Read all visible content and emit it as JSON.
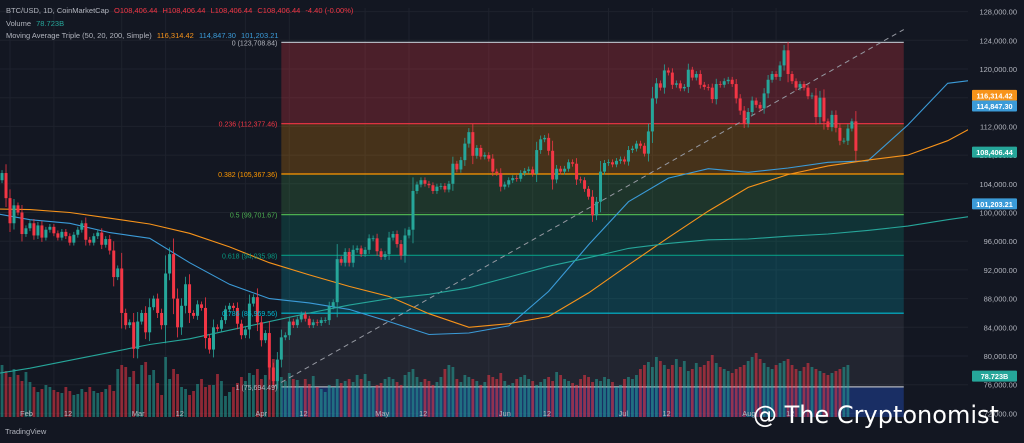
{
  "header": {
    "symbol": "BTC/USD, 1D, CoinMarketCap",
    "ohlc": [
      "O108,406.44",
      "H108,406.44",
      "L108,406.44",
      "C108,406.44",
      "-4.40 (-0.00%)"
    ],
    "volume_label": "Volume",
    "volume_value": "78.723B",
    "ma_label": "Moving Average Triple (50, 20, 200, Simple)",
    "ma_values": [
      "116,314.42",
      "114,847.30",
      "101,203.21"
    ]
  },
  "watermark": "@ The Cryptonomist",
  "footer": {
    "brand": "TradingView"
  },
  "colors": {
    "background": "#131722",
    "up": "#26a69a",
    "down": "#f23645",
    "ma50": "#f7931a",
    "ma20": "#3b9bd8",
    "ma200": "#26a69a",
    "grid": "#1e222d"
  },
  "chart_data": {
    "type": "candlestick",
    "ylim": [
      71500,
      128500
    ],
    "price_ticks": [
      "128,000.00",
      "124,000.00",
      "120,000.00",
      "116,000.00",
      "112,000.00",
      "108,000.00",
      "104,000.00",
      "100,000.00",
      "96,000.00",
      "92,000.00",
      "88,000.00",
      "84,000.00",
      "80,000.00",
      "76,000.00",
      "72,000.00"
    ],
    "x_ticks": [
      {
        "label": "Feb",
        "day": 0
      },
      {
        "label": "12",
        "day": 11
      },
      {
        "label": "Mar",
        "day": 28
      },
      {
        "label": "12",
        "day": 39
      },
      {
        "label": "Apr",
        "day": 59
      },
      {
        "label": "12",
        "day": 70
      },
      {
        "label": "May",
        "day": 89
      },
      {
        "label": "12",
        "day": 100
      },
      {
        "label": "Jun",
        "day": 120
      },
      {
        "label": "12",
        "day": 131
      },
      {
        "label": "Jul",
        "day": 150
      },
      {
        "label": "12",
        "day": 161
      },
      {
        "label": "Aug",
        "day": 181
      },
      {
        "label": "12",
        "day": 192
      }
    ],
    "fibonacci": [
      {
        "label": "0 (123,708.84)",
        "price": 123708.84,
        "color": "#b2b5be",
        "fill": "rgba(242,54,69,0.25)"
      },
      {
        "label": "0.236 (112,377.46)",
        "price": 112377.46,
        "color": "#f23645",
        "fill": "rgba(255,152,0,0.22)"
      },
      {
        "label": "0.382 (105,367.36)",
        "price": 105367.36,
        "color": "#ff9800",
        "fill": "rgba(76,175,80,0.20)"
      },
      {
        "label": "0.5 (99,701.67)",
        "price": 99701.67,
        "color": "#4caf50",
        "fill": "rgba(8,153,129,0.22)"
      },
      {
        "label": "0.618 (94,035.98)",
        "price": 94035.98,
        "color": "#089981",
        "fill": "rgba(0,188,212,0.20)"
      },
      {
        "label": "0.786 (85,969.56)",
        "price": 85969.56,
        "color": "#00bcd4",
        "fill": "rgba(120,123,134,0.15)"
      },
      {
        "label": "1 (75,694.49)",
        "price": 75694.49,
        "color": "#b2b5be",
        "fill": "rgba(41,98,255,0.30)"
      }
    ],
    "fib_start_day": 68,
    "fib_end_day": 224,
    "trendline": [
      {
        "day": 66,
        "price": 75700
      },
      {
        "day": 224,
        "price": 125500
      }
    ],
    "price_badges": [
      {
        "text": "116,314.42",
        "price": 116314.42,
        "color": "#f7931a"
      },
      {
        "text": "114,847.30",
        "price": 114847.3,
        "color": "#3b9bd8"
      },
      {
        "text": "108,406.44",
        "price": 108406.44,
        "color": "#26a69a"
      },
      {
        "text": "101,203.21",
        "price": 101203.21,
        "color": "#3b9bd8"
      },
      {
        "text": "78.723B",
        "price": 77200,
        "color": "#26a69a"
      }
    ],
    "series": [
      {
        "name": "Price",
        "day_start": -5,
        "close": [
          102000,
          103500,
          104500,
          105500,
          102000,
          98500,
          101000,
          100000,
          97000,
          97800,
          98500,
          96800,
          98200,
          96500,
          97600,
          98000,
          97100,
          96500,
          97300,
          96700,
          95800,
          96900,
          97600,
          98500,
          96200,
          95800,
          96700,
          97200,
          95500,
          96300,
          94700,
          91000,
          92200,
          86000,
          84300,
          84700,
          81000,
          84800,
          86000,
          83300,
          86800,
          88000,
          86000,
          84300,
          91500,
          94200,
          88000,
          84000,
          87000,
          90000,
          86000,
          85600,
          87200,
          86700,
          82500,
          80900,
          84000,
          83800,
          85000,
          86500,
          87000,
          86700,
          84500,
          82900,
          83700,
          87300,
          88200,
          84700,
          82200,
          83200,
          78400,
          76500,
          79500,
          82600,
          82900,
          84800,
          84300,
          85100,
          85800,
          85200,
          84300,
          84700,
          84600,
          85000,
          85000,
          86900,
          87500,
          93500,
          93000,
          94500,
          93000,
          94800,
          95000,
          94200,
          94800,
          96400,
          96400,
          94600,
          93800,
          94200,
          96500,
          97000,
          95600,
          94000,
          96800,
          97600,
          103000,
          103900,
          104500,
          104000,
          103800,
          103000,
          103600,
          103700,
          103200,
          104000,
          106800,
          106000,
          107300,
          109600,
          111200,
          107900,
          109000,
          107800,
          108000,
          107500,
          105700,
          105500,
          103600,
          103900,
          104500,
          104800,
          104700,
          105500,
          105800,
          106000,
          105400,
          108700,
          110200,
          110400,
          108600,
          104600,
          106100,
          105700,
          106100,
          107000,
          106800,
          104600,
          104500,
          103300,
          102200,
          99600,
          101500,
          105700,
          106900,
          107000,
          106700,
          107200,
          107400,
          107100,
          108700,
          108900,
          109600,
          109300,
          108200,
          111300,
          115900,
          118000,
          117400,
          119800,
          119500,
          117800,
          118000,
          117300,
          117500,
          119900,
          118800,
          119300,
          117800,
          117500,
          117400,
          115800,
          117900,
          117800,
          118300,
          118500,
          117900,
          115900,
          114200,
          112400,
          114000,
          115600,
          115000,
          114500,
          116600,
          118500,
          119300,
          118900,
          120500,
          122600,
          119300,
          118300,
          117400,
          117900,
          117400,
          116200,
          116300,
          113300,
          116000,
          112700,
          111900,
          113600,
          111800,
          110000,
          110000,
          111700,
          112700,
          108600
        ]
      },
      {
        "name": "Volume",
        "day_start": -5,
        "values": [
          44,
          38,
          45,
          52,
          46,
          40,
          48,
          42,
          36,
          45,
          35,
          30,
          25,
          28,
          32,
          30,
          27,
          25,
          24,
          30,
          26,
          22,
          23,
          28,
          25,
          30,
          26,
          24,
          25,
          28,
          32,
          26,
          48,
          52,
          50,
          40,
          46,
          33,
          52,
          55,
          42,
          47,
          34,
          22,
          60,
          38,
          48,
          43,
          30,
          28,
          22,
          26,
          33,
          38,
          30,
          32,
          32,
          43,
          36,
          21,
          25,
          30,
          34,
          40,
          36,
          44,
          42,
          48,
          38,
          42,
          52,
          58,
          48,
          40,
          36,
          44,
          38,
          37,
          30,
          38,
          33,
          41,
          30,
          28,
          25,
          32,
          30,
          38,
          34,
          36,
          38,
          35,
          42,
          38,
          43,
          36,
          30,
          32,
          34,
          38,
          40,
          38,
          35,
          32,
          42,
          45,
          48,
          40,
          35,
          38,
          36,
          32,
          35,
          40,
          48,
          52,
          50,
          38,
          35,
          42,
          40,
          38,
          36,
          32,
          35,
          42,
          40,
          38,
          44,
          36,
          32,
          34,
          38,
          40,
          42,
          38,
          36,
          32,
          35,
          38,
          40,
          36,
          45,
          42,
          38,
          36,
          34,
          32,
          38,
          42,
          40,
          35,
          38,
          36,
          40,
          38,
          35,
          30,
          32,
          38,
          40,
          38,
          42,
          48,
          52,
          55,
          50,
          60,
          56,
          52,
          48,
          52,
          58,
          50,
          56,
          46,
          48,
          54,
          50,
          52,
          56,
          62,
          54,
          50,
          48,
          46,
          44,
          48,
          50,
          52,
          56,
          60,
          64,
          58,
          54,
          50,
          48,
          52,
          54,
          56,
          58,
          52,
          48,
          46,
          50,
          54,
          50,
          48,
          46,
          44,
          42,
          44,
          46,
          48,
          50,
          52
        ]
      }
    ],
    "ma_series": [
      {
        "name": "MA 20",
        "color": "#3b9bd8",
        "day_start": -5,
        "step": 10,
        "values": [
          100000,
          99000,
          98500,
          97200,
          96400,
          93000,
          90000,
          88000,
          87400,
          86500,
          84800,
          83000,
          83200,
          84200,
          89000,
          95500,
          101500,
          104800,
          106100,
          105600,
          106200,
          107000,
          107200,
          112200,
          118000,
          118700,
          117800,
          117100,
          115500,
          115500
        ]
      },
      {
        "name": "MA 50",
        "color": "#f7931a",
        "day_start": -5,
        "step": 10,
        "values": [
          100500,
          100400,
          100000,
          99200,
          98400,
          97100,
          95200,
          93000,
          91300,
          89700,
          88300,
          85900,
          84000,
          84500,
          85500,
          88800,
          92700,
          96500,
          100200,
          103500,
          105300,
          106500,
          107300,
          108000,
          110000,
          113000,
          114300,
          115700,
          116300,
          116100
        ]
      },
      {
        "name": "MA 200",
        "color": "#26a69a",
        "day_start": -5,
        "step": 10,
        "values": [
          77400,
          78300,
          79400,
          80500,
          81600,
          82400,
          83600,
          84800,
          86000,
          87100,
          88000,
          88600,
          89500,
          91000,
          92500,
          93700,
          95000,
          95700,
          96200,
          96300,
          96700,
          97000,
          97500,
          98100,
          99000,
          99800,
          100400,
          100900,
          101200,
          101300
        ]
      }
    ]
  }
}
